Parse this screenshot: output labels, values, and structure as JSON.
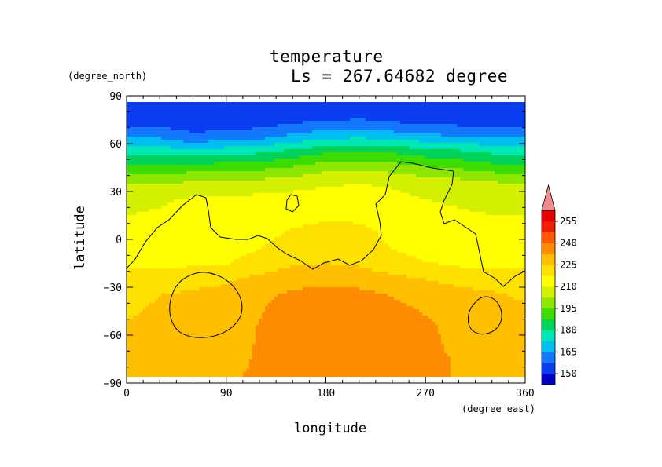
{
  "chart_data": {
    "type": "heatmap",
    "title": "temperature",
    "subtitle": "Ls = 267.64682 degree",
    "xlabel": "longitude",
    "ylabel": "latitude",
    "x_unit": "(degree_east)",
    "y_unit": "(degree_north)",
    "xlim": [
      0,
      360
    ],
    "ylim": [
      -90,
      90
    ],
    "x_ticks": [
      0,
      90,
      180,
      270,
      360
    ],
    "y_ticks": [
      90,
      60,
      30,
      0,
      -30,
      -60,
      -90
    ],
    "x_tick_labels": [
      "0",
      "90",
      "180",
      "270",
      "360"
    ],
    "y_tick_labels": [
      "90",
      "60",
      "30",
      "0",
      "−30",
      "−60",
      "−90"
    ],
    "colorbar": {
      "levels": [
        150,
        165,
        180,
        195,
        210,
        225,
        240,
        255
      ],
      "labels": [
        "150",
        "165",
        "180",
        "195",
        "210",
        "225",
        "240",
        "255"
      ],
      "colors": [
        "#0000c8",
        "#0a3cf0",
        "#1478ff",
        "#00bef0",
        "#00e6b4",
        "#00d25a",
        "#3cdc00",
        "#8ce600",
        "#d2f000",
        "#ffff00",
        "#ffe100",
        "#ffbe00",
        "#ff8c00",
        "#ff5a00",
        "#f01e00",
        "#e60000",
        "#f08c8c"
      ],
      "extend": "max"
    },
    "lon": [
      0,
      30,
      60,
      90,
      120,
      150,
      180,
      210,
      240,
      270,
      300,
      330,
      360
    ],
    "lat": [
      85,
      75,
      65,
      55,
      45,
      35,
      25,
      15,
      5,
      -5,
      -15,
      -25,
      -35,
      -45,
      -55,
      -65,
      -75,
      -85
    ],
    "temperature": [
      [
        150,
        150,
        150,
        150,
        150,
        150,
        150,
        150,
        150,
        150,
        150,
        150,
        150
      ],
      [
        152,
        152,
        154,
        153,
        152,
        155,
        157,
        158,
        156,
        154,
        153,
        152,
        152
      ],
      [
        163,
        163,
        158,
        160,
        162,
        166,
        169,
        170,
        168,
        166,
        165,
        164,
        163
      ],
      [
        176,
        177,
        175,
        177,
        178,
        182,
        186,
        188,
        186,
        183,
        181,
        178,
        176
      ],
      [
        189,
        190,
        191,
        192,
        193,
        196,
        200,
        201,
        199,
        196,
        194,
        191,
        189
      ],
      [
        202,
        203,
        204,
        205,
        206,
        207,
        209,
        210,
        209,
        207,
        206,
        204,
        202
      ],
      [
        208,
        209,
        211,
        211,
        212,
        213,
        214,
        214,
        212,
        210,
        209,
        208,
        208
      ],
      [
        210,
        211,
        212,
        213,
        214,
        215,
        216,
        216,
        214,
        212,
        211,
        210,
        210
      ],
      [
        211,
        212,
        213,
        213,
        215,
        218,
        220,
        219,
        216,
        213,
        212,
        211,
        211
      ],
      [
        212,
        212,
        213,
        214,
        217,
        221,
        222,
        221,
        217,
        214,
        213,
        212,
        212
      ],
      [
        215,
        216,
        216,
        217,
        221,
        224,
        225,
        224,
        221,
        218,
        216,
        215,
        215
      ],
      [
        221,
        222,
        223,
        224,
        227,
        229,
        230,
        229,
        227,
        225,
        223,
        222,
        221
      ],
      [
        223,
        225,
        226,
        227,
        231,
        234,
        236,
        235,
        232,
        229,
        227,
        226,
        224
      ],
      [
        224,
        226,
        228,
        228,
        232,
        236,
        238,
        238,
        235,
        232,
        229,
        228,
        226
      ],
      [
        226,
        227,
        228,
        229,
        233,
        236,
        238,
        238,
        236,
        234,
        230,
        228,
        227
      ],
      [
        228,
        228,
        229,
        230,
        233,
        236,
        238,
        238,
        237,
        234,
        231,
        229,
        228
      ],
      [
        229,
        229,
        230,
        231,
        233,
        236,
        237,
        237,
        236,
        234,
        232,
        230,
        229
      ],
      [
        229,
        230,
        231,
        232,
        233,
        235,
        236,
        236,
        235,
        234,
        232,
        230,
        229
      ]
    ]
  }
}
